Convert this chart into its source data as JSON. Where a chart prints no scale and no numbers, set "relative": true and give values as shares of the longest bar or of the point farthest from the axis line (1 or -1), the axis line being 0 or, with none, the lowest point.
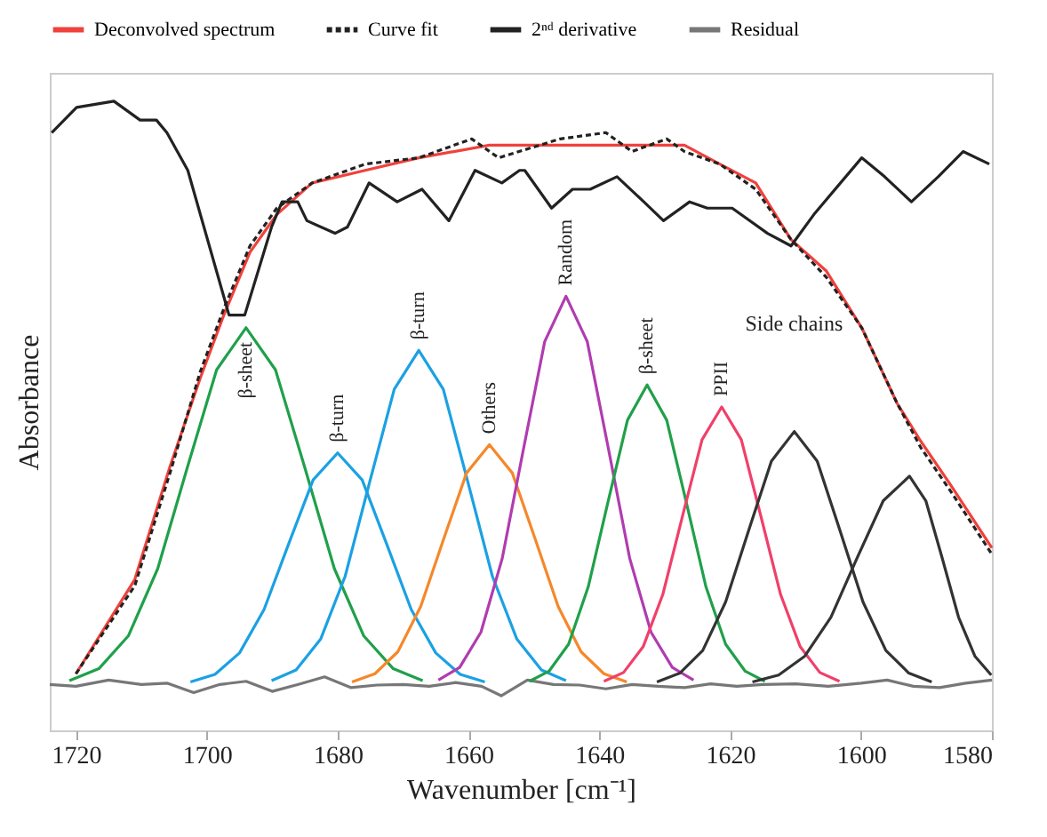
{
  "chart_data": {
    "type": "line",
    "relative": true,
    "xlabel": "Wavenumber [cm⁻¹]",
    "ylabel": "Absorbance",
    "xlim": [
      1724,
      1580
    ],
    "xticks": [
      1720,
      1700,
      1680,
      1660,
      1640,
      1620,
      1600,
      1580
    ],
    "grid": false,
    "legend": "top",
    "marker": "none",
    "series": [
      {
        "name": "Deconvolved spectrum",
        "color": "#f0413c",
        "x": [
          1720,
          1711,
          1705.6,
          1701,
          1697.4,
          1693.4,
          1689.3,
          1683.9,
          1675.8,
          1667.6,
          1656.8,
          1646,
          1637.8,
          1631,
          1627,
          1621.6,
          1616.1,
          1610.7,
          1605.3,
          1599.9,
          1594.5,
          1590.9,
          1586.3,
          1580
        ],
        "values": [
          0.09,
          0.24,
          0.42,
          0.56,
          0.66,
          0.76,
          0.82,
          0.87,
          0.89,
          0.91,
          0.93,
          0.93,
          0.93,
          0.93,
          0.93,
          0.9,
          0.87,
          0.78,
          0.73,
          0.64,
          0.52,
          0.46,
          0.39,
          0.29
        ]
      },
      {
        "name": "Curve fit",
        "color": "#222222",
        "line_style": "dashed",
        "x": [
          1720,
          1711,
          1705.6,
          1701,
          1697.4,
          1693.4,
          1689.3,
          1683.9,
          1675.8,
          1667.6,
          1659.5,
          1655.4,
          1646,
          1639,
          1635,
          1629.7,
          1627,
          1621.6,
          1616.1,
          1610.7,
          1605.3,
          1599.9,
          1594.5,
          1590.9,
          1586.3,
          1580
        ],
        "values": [
          0.09,
          0.23,
          0.41,
          0.57,
          0.67,
          0.77,
          0.83,
          0.87,
          0.9,
          0.91,
          0.94,
          0.91,
          0.94,
          0.95,
          0.92,
          0.94,
          0.92,
          0.9,
          0.86,
          0.78,
          0.72,
          0.64,
          0.52,
          0.45,
          0.38,
          0.28
        ]
      },
      {
        "name": "2ⁿᵈ derivative",
        "color": "#222222",
        "x": [
          1723.7,
          1719.9,
          1714.2,
          1710.2,
          1707.7,
          1706.1,
          1702.9,
          1696.6,
          1694.2,
          1690.1,
          1688.5,
          1686.1,
          1684.7,
          1680.4,
          1678.5,
          1675.2,
          1670.9,
          1667.1,
          1663,
          1659,
          1654.9,
          1652.2,
          1651.4,
          1647.3,
          1644.1,
          1641.4,
          1637.3,
          1633.2,
          1630.2,
          1626.2,
          1623.5,
          1619.7,
          1614.3,
          1610.7,
          1607.2,
          1599.9,
          1596.4,
          1592.3,
          1588.2,
          1584.4,
          1580.4
        ],
        "values": [
          0.95,
          0.99,
          1,
          0.97,
          0.97,
          0.95,
          0.89,
          0.66,
          0.66,
          0.8,
          0.84,
          0.84,
          0.81,
          0.79,
          0.8,
          0.87,
          0.84,
          0.86,
          0.81,
          0.89,
          0.87,
          0.89,
          0.89,
          0.83,
          0.86,
          0.86,
          0.88,
          0.84,
          0.81,
          0.84,
          0.83,
          0.83,
          0.79,
          0.77,
          0.82,
          0.91,
          0.88,
          0.84,
          0.88,
          0.92,
          0.9
        ]
      },
      {
        "name": "Residual",
        "color": "#777777",
        "x": [
          1724,
          1720,
          1715,
          1710,
          1706,
          1702,
          1698,
          1694,
          1690,
          1686,
          1682,
          1678,
          1674,
          1670,
          1666,
          1662,
          1658,
          1655,
          1651,
          1647,
          1643,
          1639,
          1635,
          1631,
          1627,
          1623,
          1619,
          1615,
          1610,
          1605,
          1600,
          1596,
          1592,
          1588,
          1584,
          1580
        ],
        "values": [
          0.073,
          0.07,
          0.08,
          0.073,
          0.075,
          0.06,
          0.073,
          0.078,
          0.062,
          0.073,
          0.085,
          0.068,
          0.072,
          0.073,
          0.07,
          0.076,
          0.07,
          0.055,
          0.08,
          0.073,
          0.072,
          0.066,
          0.073,
          0.07,
          0.068,
          0.074,
          0.07,
          0.073,
          0.074,
          0.07,
          0.075,
          0.08,
          0.07,
          0.068,
          0.075,
          0.08
        ]
      },
      {
        "color": "#20a04a",
        "x": [
          1721,
          1716.5,
          1712,
          1707.5,
          1703,
          1698.5,
          1694,
          1689.5,
          1685,
          1680.5,
          1676,
          1671.5,
          1667
        ],
        "values": [
          0.079,
          0.098,
          0.15,
          0.257,
          0.417,
          0.573,
          0.64,
          0.573,
          0.417,
          0.257,
          0.15,
          0.098,
          0.079
        ]
      },
      {
        "color": "#1ba1e2",
        "x": [
          1702.5,
          1698.75,
          1695,
          1691.25,
          1687.5,
          1683.75,
          1680,
          1676.25,
          1672.5,
          1668.75,
          1665,
          1661.25,
          1657.5
        ],
        "values": [
          0.077,
          0.089,
          0.123,
          0.192,
          0.296,
          0.398,
          0.441,
          0.398,
          0.296,
          0.192,
          0.123,
          0.089,
          0.077
        ]
      },
      {
        "color": "#1ba1e2",
        "x": [
          1690.1,
          1686.35,
          1682.6,
          1678.85,
          1675.1,
          1671.35,
          1667.6,
          1663.85,
          1660.1,
          1656.35,
          1652.6,
          1648.85,
          1645.1
        ],
        "values": [
          0.079,
          0.096,
          0.145,
          0.245,
          0.395,
          0.542,
          0.604,
          0.542,
          0.395,
          0.245,
          0.145,
          0.096,
          0.079
        ]
      },
      {
        "color": "#f5882a",
        "x": [
          1677.8,
          1674.3,
          1670.8,
          1667.3,
          1663.8,
          1660.3,
          1656.8,
          1653.3,
          1649.8,
          1646.3,
          1642.8,
          1639.3,
          1635.8
        ],
        "values": [
          0.077,
          0.09,
          0.125,
          0.197,
          0.304,
          0.409,
          0.454,
          0.409,
          0.304,
          0.197,
          0.125,
          0.09,
          0.077
        ]
      },
      {
        "color": "#b03cb0",
        "x": [
          1664.6,
          1661.35,
          1658.1,
          1654.85,
          1651.6,
          1648.35,
          1645.1,
          1641.85,
          1638.6,
          1635.35,
          1632.1,
          1628.85,
          1625.6
        ],
        "values": [
          0.08,
          0.1,
          0.156,
          0.273,
          0.447,
          0.618,
          0.69,
          0.618,
          0.447,
          0.273,
          0.156,
          0.1,
          0.08
        ]
      },
      {
        "color": "#20a04a",
        "x": [
          1650.7,
          1647.7,
          1644.7,
          1641.7,
          1638.7,
          1635.7,
          1632.7,
          1629.7,
          1626.7,
          1623.7,
          1620.7,
          1617.7,
          1614.7
        ],
        "values": [
          0.078,
          0.094,
          0.137,
          0.228,
          0.362,
          0.493,
          0.549,
          0.493,
          0.362,
          0.228,
          0.137,
          0.094,
          0.078
        ]
      },
      {
        "color": "#f0406a",
        "x": [
          1639.3,
          1636.3,
          1633.3,
          1630.3,
          1627.3,
          1624.3,
          1621.3,
          1618.3,
          1615.3,
          1612.3,
          1609.3,
          1606.3,
          1603.3
        ],
        "values": [
          0.078,
          0.092,
          0.133,
          0.216,
          0.34,
          0.462,
          0.514,
          0.462,
          0.34,
          0.216,
          0.133,
          0.092,
          0.078
        ]
      },
      {
        "color": "#333333",
        "x": [
          1631.2,
          1627.7,
          1624.2,
          1620.7,
          1617.2,
          1613.7,
          1610.2,
          1606.7,
          1603.2,
          1599.7,
          1596.2,
          1592.7,
          1589.2
        ],
        "values": [
          0.077,
          0.091,
          0.127,
          0.204,
          0.317,
          0.428,
          0.475,
          0.428,
          0.317,
          0.204,
          0.127,
          0.091,
          0.077
        ]
      },
      {
        "color": "#333333",
        "x": [
          1616.6,
          1612.6,
          1608.6,
          1604.6,
          1600.6,
          1596.6,
          1592.6,
          1590.1,
          1587.6,
          1585.1,
          1582.6,
          1580.1
        ],
        "values": [
          0.077,
          0.088,
          0.118,
          0.18,
          0.274,
          0.365,
          0.404,
          0.365,
          0.274,
          0.18,
          0.118,
          0.088
        ]
      }
    ],
    "annotations": [
      {
        "text": "β-sheet",
        "x": 1694,
        "y": 0.64
      },
      {
        "text": "β-turn",
        "x": 1680,
        "y": 0.441
      },
      {
        "text": "β-turn",
        "x": 1667.6,
        "y": 0.604
      },
      {
        "text": "Others",
        "x": 1656.8,
        "y": 0.454
      },
      {
        "text": "Random",
        "x": 1645.1,
        "y": 0.69
      },
      {
        "text": "β-sheet",
        "x": 1632.7,
        "y": 0.549
      },
      {
        "text": "PPII",
        "x": 1621.3,
        "y": 0.514
      },
      "Side chains"
    ]
  }
}
